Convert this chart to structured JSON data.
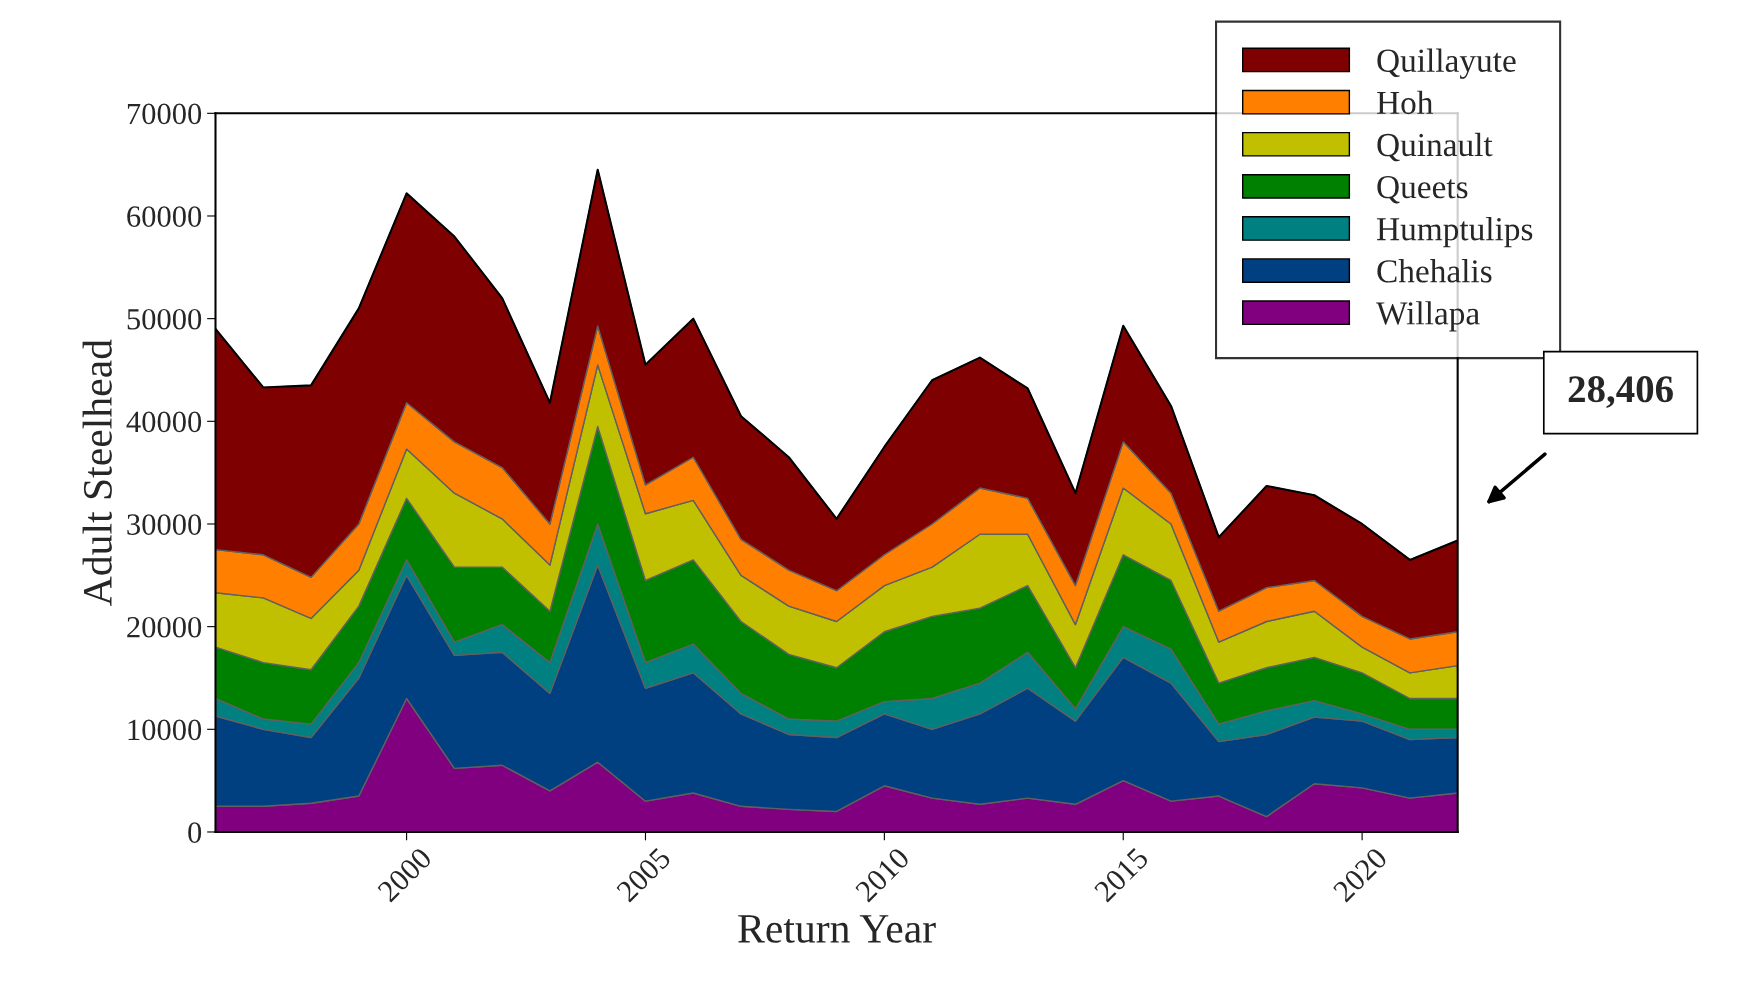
{
  "chart_data": {
    "type": "area",
    "stacked": true,
    "xlabel": "Return Year",
    "ylabel": "Adult Steelhead",
    "x": [
      1996,
      1997,
      1998,
      1999,
      2000,
      2001,
      2002,
      2003,
      2004,
      2005,
      2006,
      2007,
      2008,
      2009,
      2010,
      2011,
      2012,
      2013,
      2014,
      2015,
      2016,
      2017,
      2018,
      2019,
      2020,
      2021,
      2022
    ],
    "xlim": [
      1996,
      2022
    ],
    "xticks": [
      2000,
      2005,
      2010,
      2015,
      2020
    ],
    "ylim": [
      0,
      70000
    ],
    "yticks": [
      0,
      10000,
      20000,
      30000,
      40000,
      50000,
      60000,
      70000
    ],
    "legend": "top right",
    "series": [
      {
        "name": "Willapa",
        "color": "#800080",
        "values": [
          2500,
          2500,
          2800,
          3500,
          13000,
          6200,
          6500,
          4000,
          6800,
          3000,
          3800,
          2500,
          2200,
          2000,
          4500,
          3300,
          2700,
          3300,
          2700,
          5000,
          3000,
          3500,
          1500,
          4700,
          4300,
          3300,
          3800
        ]
      },
      {
        "name": "Chehalis",
        "color": "#003f80",
        "values": [
          8800,
          7500,
          6400,
          11500,
          12000,
          11000,
          11000,
          9500,
          19200,
          11000,
          11700,
          9000,
          7300,
          7200,
          7000,
          6700,
          8800,
          10700,
          8100,
          12000,
          11500,
          5300,
          8000,
          6500,
          6500,
          5700,
          5400
        ]
      },
      {
        "name": "Humptulips",
        "color": "#008080",
        "values": [
          1700,
          1000,
          1300,
          1500,
          1500,
          1300,
          2700,
          3000,
          4000,
          2500,
          2800,
          2000,
          1500,
          1600,
          1200,
          3000,
          3000,
          3500,
          1200,
          3000,
          3300,
          1700,
          2300,
          1600,
          700,
          1000,
          800
        ]
      },
      {
        "name": "Queets",
        "color": "#008000",
        "values": [
          5000,
          5500,
          5300,
          5500,
          6000,
          7300,
          5600,
          5000,
          9500,
          8000,
          8200,
          7000,
          6300,
          5200,
          6800,
          8000,
          7300,
          6500,
          4000,
          7000,
          6700,
          4000,
          4200,
          4200,
          4000,
          3000,
          3000
        ]
      },
      {
        "name": "Quinault",
        "color": "#c0c000",
        "values": [
          5300,
          6300,
          5000,
          3500,
          4800,
          7200,
          4700,
          4500,
          6000,
          6500,
          5800,
          4500,
          4700,
          4500,
          4500,
          4800,
          7200,
          5000,
          4200,
          6500,
          5500,
          4000,
          4500,
          4500,
          2500,
          2500,
          3200
        ]
      },
      {
        "name": "Hoh",
        "color": "#ff8000",
        "values": [
          4200,
          4200,
          4000,
          4500,
          4500,
          5000,
          5000,
          4000,
          3800,
          2800,
          4200,
          3500,
          3500,
          3000,
          3000,
          4200,
          4500,
          3500,
          3800,
          4500,
          3000,
          3000,
          3300,
          3000,
          3000,
          3300,
          3300
        ]
      },
      {
        "name": "Quillayute",
        "color": "#7f0000",
        "values": [
          21500,
          16300,
          18700,
          21000,
          20400,
          20000,
          16500,
          11800,
          15200,
          11700,
          13500,
          12000,
          11000,
          7000,
          10500,
          14000,
          12700,
          10700,
          9000,
          11300,
          8500,
          7200,
          9900,
          8300,
          9000,
          7700,
          8900
        ]
      }
    ],
    "annotations": [
      "28,406"
    ]
  }
}
